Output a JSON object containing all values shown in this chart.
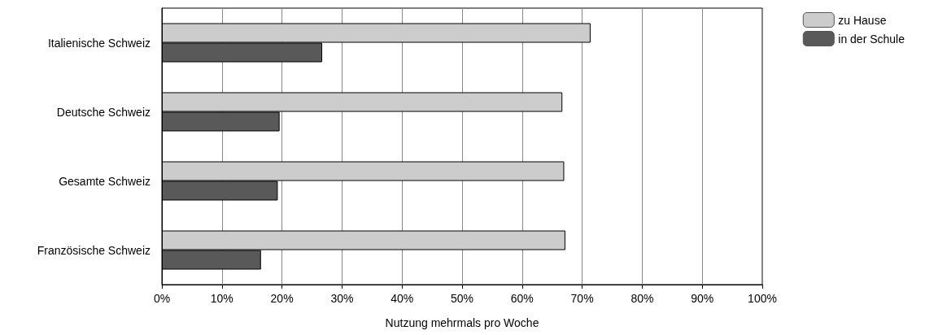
{
  "chart_data": {
    "type": "bar",
    "orientation": "horizontal",
    "xlabel": "Nutzung mehrmals pro Woche",
    "categories": [
      "Italienische Schweiz",
      "Deutsche Schweiz",
      "Gesamte Schweiz",
      "Französische Schweiz"
    ],
    "series": [
      {
        "name": "zu Hause",
        "color": "#cccccc",
        "values": [
          71.4,
          66.7,
          67.0,
          67.2
        ]
      },
      {
        "name": "in der Schule",
        "color": "#595959",
        "values": [
          26.7,
          19.6,
          19.3,
          16.5
        ]
      }
    ],
    "xlim": [
      0,
      100
    ],
    "xticks": [
      {
        "value": 0,
        "label": "0%"
      },
      {
        "value": 10,
        "label": "10%"
      },
      {
        "value": 20,
        "label": "20%"
      },
      {
        "value": 30,
        "label": "30%"
      },
      {
        "value": 40,
        "label": "40%"
      },
      {
        "value": 50,
        "label": "50%"
      },
      {
        "value": 60,
        "label": "60%"
      },
      {
        "value": 70,
        "label": "70%"
      },
      {
        "value": 80,
        "label": "80%"
      },
      {
        "value": 90,
        "label": "90%"
      },
      {
        "value": 100,
        "label": "100%"
      }
    ],
    "grid": "x",
    "legend": "top right"
  }
}
